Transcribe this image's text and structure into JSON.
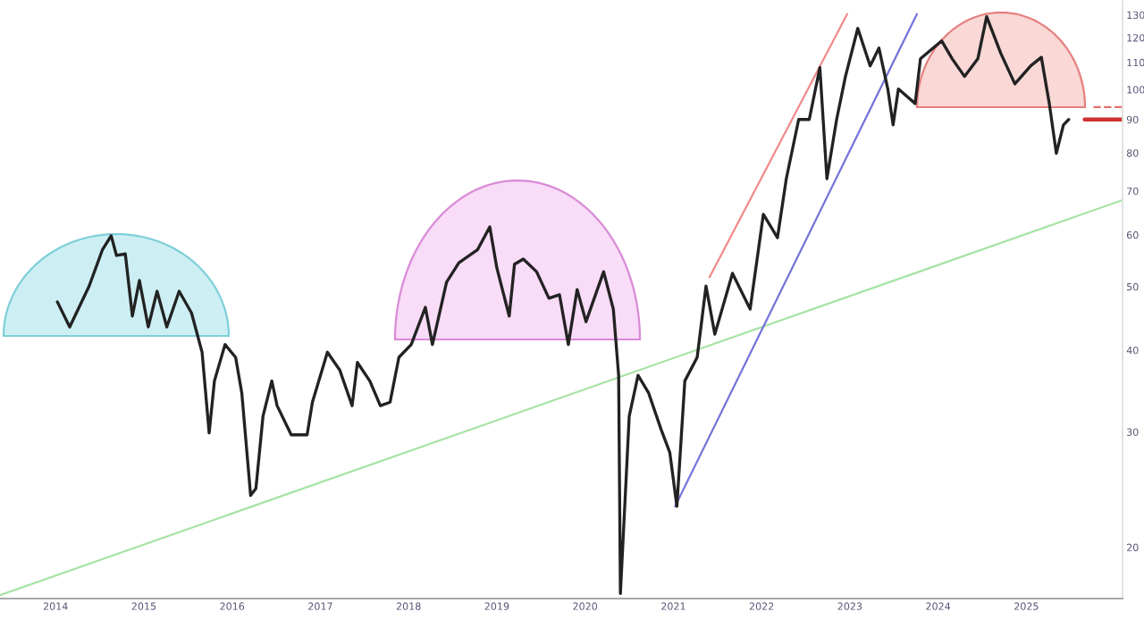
{
  "chart_data": {
    "type": "line",
    "log": "y",
    "grid": false,
    "legend": false,
    "xlim": [
      2013.37,
      2026.09
    ],
    "xticks": [
      2014,
      2015,
      2016,
      2017,
      2018,
      2019,
      2020,
      2021,
      2022,
      2023,
      2024,
      2025
    ],
    "ylim": [
      16.7,
      137
    ],
    "yticks": [
      20,
      30,
      40,
      50,
      60,
      70,
      80,
      90,
      100,
      110,
      120,
      130
    ],
    "series": [
      {
        "color": "#222222",
        "line_style": "solid",
        "x": [
          2014.02,
          2014.16,
          2014.38,
          2014.53,
          2014.63,
          2014.69,
          2014.79,
          2014.87,
          2014.95,
          2015.05,
          2015.15,
          2015.26,
          2015.4,
          2015.54,
          2015.66,
          2015.74,
          2015.8,
          2015.92,
          2016.04,
          2016.11,
          2016.21,
          2016.27,
          2016.35,
          2016.45,
          2016.51,
          2016.67,
          2016.85,
          2016.91,
          2017.08,
          2017.22,
          2017.36,
          2017.42,
          2017.56,
          2017.68,
          2017.79,
          2017.89,
          2018.03,
          2018.19,
          2018.27,
          2018.43,
          2018.57,
          2018.78,
          2018.92,
          2019.0,
          2019.14,
          2019.2,
          2019.3,
          2019.45,
          2019.59,
          2019.71,
          2019.81,
          2019.91,
          2020.01,
          2020.21,
          2020.32,
          2020.38,
          2020.4,
          2020.5,
          2020.6,
          2020.72,
          2020.86,
          2020.96,
          2021.04,
          2021.13,
          2021.27,
          2021.37,
          2021.47,
          2021.67,
          2021.87,
          2022.02,
          2022.18,
          2022.28,
          2022.42,
          2022.54,
          2022.66,
          2022.74,
          2022.85,
          2022.95,
          2023.09,
          2023.23,
          2023.33,
          2023.43,
          2023.49,
          2023.55,
          2023.74,
          2023.8,
          2024.04,
          2024.16,
          2024.3,
          2024.45,
          2024.55,
          2024.71,
          2024.87,
          2025.05,
          2025.17,
          2025.26,
          2025.34,
          2025.42,
          2025.48
        ],
        "values": [
          47.4,
          43.4,
          50.1,
          56.9,
          59.8,
          55.8,
          56.1,
          45.1,
          51.1,
          43.4,
          49.2,
          43.4,
          49.2,
          45.6,
          39.7,
          29.9,
          35.9,
          40.8,
          39.0,
          34.4,
          24.0,
          24.6,
          31.7,
          35.9,
          32.9,
          29.7,
          29.7,
          33.3,
          39.7,
          37.3,
          32.9,
          38.3,
          35.9,
          32.9,
          33.3,
          39.0,
          40.8,
          46.5,
          40.8,
          50.8,
          54.4,
          56.9,
          61.7,
          53.4,
          45.1,
          54.1,
          55.1,
          52.7,
          48.0,
          48.6,
          40.8,
          49.5,
          44.2,
          52.7,
          46.2,
          36.6,
          17.0,
          31.7,
          36.6,
          34.4,
          30.3,
          27.9,
          23.1,
          35.9,
          39.0,
          50.1,
          42.3,
          52.4,
          46.2,
          64.5,
          59.4,
          73.1,
          90.0,
          90.0,
          108.0,
          73.1,
          90.0,
          104.7,
          124,
          108.7,
          115.7,
          100.2,
          88.3,
          100.2,
          95.2,
          111.4,
          118.7,
          111.4,
          104.7,
          111.4,
          129.2,
          113.6,
          102.0,
          108.7,
          112.0,
          95.2,
          79.9,
          88.3,
          90.0
        ]
      },
      {
        "color": "#a6e3a6",
        "line_style": "solid",
        "x": [
          2013.37,
          2026.09
        ],
        "values": [
          16.9,
          67.8
        ]
      },
      {
        "color": "#f08a8a",
        "line_style": "solid",
        "x": [
          2021.41,
          2022.97
        ],
        "values": [
          51.7,
          130.4
        ]
      },
      {
        "color": "#7474d8",
        "line_style": "solid",
        "x": [
          2021.02,
          2023.76
        ],
        "values": [
          23.1,
          130.4
        ]
      },
      {
        "color": "#d03030",
        "line_style": "solid",
        "x": [
          2025.66,
          2026.09
        ],
        "values": [
          90.0,
          90.0
        ]
      },
      {
        "color": "#e07070",
        "line_style": "dashed",
        "x": [
          2025.76,
          2026.09
        ],
        "values": [
          94.0,
          94.0
        ]
      }
    ]
  }
}
